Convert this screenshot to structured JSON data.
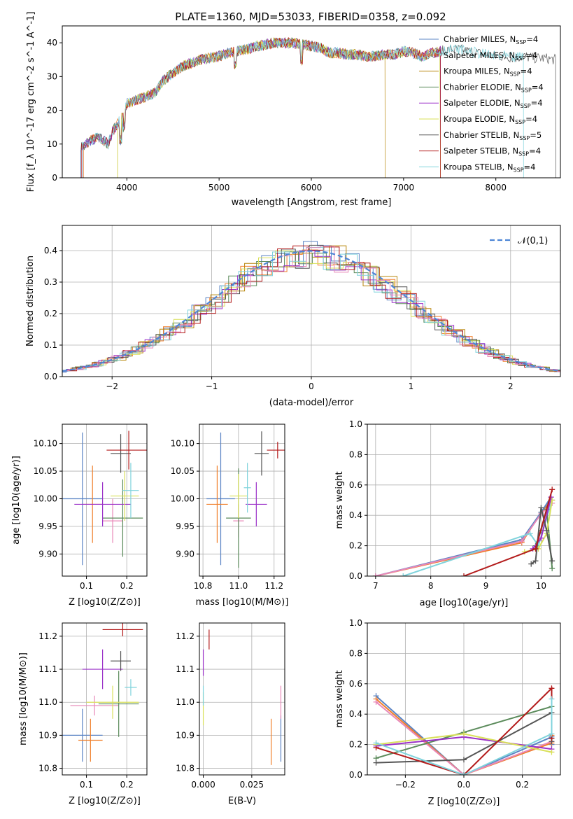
{
  "title": "PLATE=1360, MJD=53033, FIBERID=0358, z=0.092",
  "series_styles": [
    {
      "name": "Chabrier MILES",
      "nssp": "4",
      "color": "#5b84c4"
    },
    {
      "name": "Salpeter MILES",
      "nssp": "4",
      "color": "#f07f2a"
    },
    {
      "name": "Kroupa MILES",
      "nssp": "4",
      "color": "#b8860b"
    },
    {
      "name": "Chabrier ELODIE",
      "nssp": "4",
      "color": "#5a8a5a"
    },
    {
      "name": "Salpeter ELODIE",
      "nssp": "4",
      "color": "#9b30c8"
    },
    {
      "name": "Kroupa ELODIE",
      "nssp": "4",
      "color": "#d9e05a"
    },
    {
      "name": "Chabrier STELIB",
      "nssp": "5",
      "color": "#555555"
    },
    {
      "name": "Salpeter STELIB",
      "nssp": "4",
      "color": "#b31b1b"
    },
    {
      "name": "Kroupa STELIB",
      "nssp": "4",
      "color": "#7fd3dc"
    }
  ],
  "extra_colors": {
    "pink": "#e888b8"
  },
  "chart_data": [
    {
      "id": "spectrum",
      "type": "line",
      "xlabel": "wavelength [Angstrom, rest frame]",
      "ylabel": "Flux [f_λ 10^-17 erg cm^-2 s^-1 A^-1]",
      "xlim": [
        3300,
        8700
      ],
      "ylim": [
        0,
        45
      ],
      "xticks": [
        4000,
        5000,
        6000,
        7000,
        8000
      ],
      "yticks": [
        0,
        10,
        20,
        30,
        40
      ],
      "legend": "right",
      "envelope": {
        "x": [
          3500,
          3560,
          3600,
          3700,
          3800,
          3850,
          3900,
          3950,
          4000,
          4100,
          4200,
          4300,
          4400,
          4500,
          4600,
          4700,
          4800,
          4900,
          5000,
          5100,
          5200,
          5300,
          5400,
          5500,
          5600,
          5700,
          5800,
          5900,
          6000,
          6100,
          6200,
          6300,
          6400,
          6500,
          6600,
          6700,
          6800,
          6900,
          7000,
          7100,
          7200,
          7300,
          7400,
          7500,
          7600,
          7700,
          7800,
          7900,
          8000,
          8100,
          8200,
          8300,
          8400,
          8500,
          8650
        ],
        "y": [
          9,
          10,
          11,
          12,
          10,
          14,
          16,
          18,
          22,
          23,
          24,
          25,
          29,
          31,
          33,
          34,
          35,
          35.5,
          36,
          37,
          37.5,
          38,
          39,
          39.5,
          40,
          40,
          40,
          39.5,
          39,
          38.5,
          37,
          37,
          36.5,
          36.5,
          36,
          36,
          36.5,
          36.5,
          37.5,
          37,
          36,
          37,
          37.5,
          38,
          38,
          37.5,
          37,
          36.5,
          36,
          36,
          35.5,
          36,
          35.5,
          35.5,
          35
        ]
      }
    },
    {
      "id": "residuals",
      "type": "histogram",
      "xlabel": "(data-model)/error",
      "ylabel": "Normed distribution",
      "xlim": [
        -2.5,
        2.5
      ],
      "ylim": [
        0,
        0.48
      ],
      "xticks": [
        -2,
        -1,
        0,
        1,
        2
      ],
      "yticks": [
        0.0,
        0.1,
        0.2,
        0.3,
        0.4
      ],
      "reference_label": "𝒩(0,1)",
      "legend": "top-right"
    },
    {
      "id": "age_vs_Z",
      "type": "errorbar",
      "xlabel": "Z [log10(Z/Z⊙)]",
      "ylabel": "age [log10(age/yr)]",
      "xlim": [
        0.04,
        0.25
      ],
      "ylim": [
        9.86,
        10.135
      ],
      "xticks": [
        0.1,
        0.2
      ],
      "yticks": [
        9.9,
        9.95,
        10.0,
        10.05,
        10.1
      ],
      "points": [
        {
          "x": 0.09,
          "xerr": 0.05,
          "y": 10.0,
          "yerr": 0.12,
          "color": "#5b84c4"
        },
        {
          "x": 0.115,
          "xerr": 0.025,
          "y": 9.99,
          "yerr": 0.07,
          "color": "#f07f2a"
        },
        {
          "x": 0.165,
          "xerr": 0.025,
          "y": 9.96,
          "yerr": 0.04,
          "color": "#e888b8"
        },
        {
          "x": 0.19,
          "xerr": 0.05,
          "y": 9.965,
          "yerr": 0.07,
          "color": "#5a8a5a"
        },
        {
          "x": 0.14,
          "xerr": 0.07,
          "y": 9.99,
          "yerr": 0.04,
          "color": "#9b30c8"
        },
        {
          "x": 0.195,
          "xerr": 0.035,
          "y": 10.005,
          "yerr": 0.045,
          "color": "#d9e05a"
        },
        {
          "x": 0.185,
          "xerr": 0.025,
          "y": 10.082,
          "yerr": 0.035,
          "color": "#555555"
        },
        {
          "x": 0.205,
          "xerr": 0.055,
          "y": 10.088,
          "yerr": 0.035,
          "color": "#b31b1b"
        },
        {
          "x": 0.21,
          "xerr": 0.02,
          "y": 10.015,
          "yerr": 0.05,
          "color": "#7fd3dc"
        }
      ]
    },
    {
      "id": "age_vs_mass",
      "type": "errorbar",
      "xlabel": "mass [log10(M/M⊙)]",
      "ylabel": "",
      "xlim": [
        10.78,
        11.26
      ],
      "ylim": [
        9.86,
        10.135
      ],
      "xticks": [
        10.8,
        11.0,
        11.2
      ],
      "yticks": [
        9.9,
        9.95,
        10.0,
        10.05,
        10.1
      ],
      "points": [
        {
          "x": 10.9,
          "xerr": 0.08,
          "y": 10.0,
          "yerr": 0.12,
          "color": "#5b84c4"
        },
        {
          "x": 10.88,
          "xerr": 0.06,
          "y": 9.99,
          "yerr": 0.07,
          "color": "#f07f2a"
        },
        {
          "x": 11.0,
          "xerr": 0.03,
          "y": 9.96,
          "yerr": 0.03,
          "color": "#e888b8"
        },
        {
          "x": 11.0,
          "xerr": 0.07,
          "y": 9.965,
          "yerr": 0.09,
          "color": "#5a8a5a"
        },
        {
          "x": 11.1,
          "xerr": 0.06,
          "y": 9.99,
          "yerr": 0.04,
          "color": "#9b30c8"
        },
        {
          "x": 11.0,
          "xerr": 0.05,
          "y": 10.005,
          "yerr": 0.04,
          "color": "#d9e05a"
        },
        {
          "x": 11.13,
          "xerr": 0.04,
          "y": 10.082,
          "yerr": 0.04,
          "color": "#555555"
        },
        {
          "x": 11.22,
          "xerr": 0.06,
          "y": 10.088,
          "yerr": 0.015,
          "color": "#b31b1b"
        },
        {
          "x": 11.05,
          "xerr": 0.02,
          "y": 10.02,
          "yerr": 0.045,
          "color": "#7fd3dc"
        }
      ]
    },
    {
      "id": "massweight_vs_age",
      "type": "line",
      "xlabel": "age [log10(age/yr)]",
      "ylabel": "mass weight",
      "xlim": [
        6.85,
        10.35
      ],
      "ylim": [
        0,
        1
      ],
      "xticks": [
        7,
        8,
        9,
        10
      ],
      "yticks": [
        0.0,
        0.2,
        0.4,
        0.6,
        0.8,
        1.0
      ],
      "series": [
        {
          "color": "#f07f2a",
          "x": [
            7.0,
            9.65,
            10.0,
            10.2
          ],
          "y": [
            0.0,
            0.22,
            0.42,
            0.5
          ]
        },
        {
          "color": "#5b84c4",
          "x": [
            7.0,
            9.65,
            10.0,
            10.18
          ],
          "y": [
            0.0,
            0.24,
            0.42,
            0.52
          ]
        },
        {
          "color": "#e888b8",
          "x": [
            7.0,
            9.65,
            10.0,
            10.2
          ],
          "y": [
            0.0,
            0.23,
            0.41,
            0.48
          ]
        },
        {
          "color": "#7fd3dc",
          "x": [
            7.5,
            9.8,
            9.95,
            10.2
          ],
          "y": [
            0.0,
            0.28,
            0.2,
            0.5
          ]
        },
        {
          "color": "#5a8a5a",
          "x": [
            9.9,
            10.0,
            10.1,
            10.2
          ],
          "y": [
            0.2,
            0.3,
            0.44,
            0.05
          ]
        },
        {
          "color": "#d9e05a",
          "x": [
            9.7,
            9.95,
            10.1,
            10.2
          ],
          "y": [
            0.16,
            0.18,
            0.28,
            0.5
          ]
        },
        {
          "color": "#9b30c8",
          "x": [
            9.85,
            10.0,
            10.18
          ],
          "y": [
            0.18,
            0.25,
            0.52
          ]
        },
        {
          "color": "#555555",
          "x": [
            9.82,
            9.9,
            10.0,
            10.1,
            10.2
          ],
          "y": [
            0.08,
            0.1,
            0.45,
            0.3,
            0.1
          ]
        },
        {
          "color": "#b31b1b",
          "x": [
            8.6,
            9.9,
            10.2
          ],
          "y": [
            0.0,
            0.18,
            0.57
          ]
        }
      ]
    },
    {
      "id": "mass_vs_Z",
      "type": "errorbar",
      "xlabel": "Z [log10(Z/Z⊙)]",
      "ylabel": "mass [log10(M/M⊙)]",
      "xlim": [
        0.04,
        0.25
      ],
      "ylim": [
        10.78,
        11.24
      ],
      "xticks": [
        0.1,
        0.2
      ],
      "yticks": [
        10.8,
        10.9,
        11.0,
        11.1,
        11.2
      ],
      "points": [
        {
          "x": 0.09,
          "xerr": 0.05,
          "y": 10.9,
          "yerr": 0.08,
          "color": "#5b84c4"
        },
        {
          "x": 0.11,
          "xerr": 0.03,
          "y": 10.885,
          "yerr": 0.065,
          "color": "#f07f2a"
        },
        {
          "x": 0.12,
          "xerr": 0.06,
          "y": 10.99,
          "yerr": 0.03,
          "color": "#e888b8"
        },
        {
          "x": 0.18,
          "xerr": 0.05,
          "y": 10.995,
          "yerr": 0.1,
          "color": "#5a8a5a"
        },
        {
          "x": 0.14,
          "xerr": 0.05,
          "y": 11.1,
          "yerr": 0.06,
          "color": "#9b30c8"
        },
        {
          "x": 0.165,
          "xerr": 0.065,
          "y": 11.0,
          "yerr": 0.05,
          "color": "#d9e05a"
        },
        {
          "x": 0.185,
          "xerr": 0.025,
          "y": 11.125,
          "yerr": 0.03,
          "color": "#555555"
        },
        {
          "x": 0.19,
          "xerr": 0.05,
          "y": 11.22,
          "yerr": 0.02,
          "color": "#b31b1b"
        },
        {
          "x": 0.21,
          "xerr": 0.015,
          "y": 11.045,
          "yerr": 0.025,
          "color": "#7fd3dc"
        }
      ]
    },
    {
      "id": "mass_vs_EBV",
      "type": "errorbar",
      "xlabel": "E(B-V)",
      "ylabel": "",
      "xlim": [
        -0.002,
        0.042
      ],
      "ylim": [
        10.78,
        11.24
      ],
      "xticks": [
        0.0,
        0.025
      ],
      "yticks": [
        10.8,
        10.9,
        11.0,
        11.1,
        11.2
      ],
      "points": [
        {
          "x": 0.0,
          "xerr": 0,
          "y": 10.98,
          "yerr": 0.05,
          "color": "#d9e05a"
        },
        {
          "x": 0.0,
          "xerr": 0,
          "y": 11.12,
          "yerr": 0.04,
          "color": "#9b30c8"
        },
        {
          "x": 0.0,
          "xerr": 0,
          "y": 11.02,
          "yerr": 0.03,
          "color": "#7fd3dc"
        },
        {
          "x": 0.003,
          "xerr": 0,
          "y": 11.19,
          "yerr": 0.03,
          "color": "#b31b1b"
        },
        {
          "x": 0.035,
          "xerr": 0,
          "y": 10.88,
          "yerr": 0.07,
          "color": "#f07f2a"
        },
        {
          "x": 0.04,
          "xerr": 0,
          "y": 10.89,
          "yerr": 0.07,
          "color": "#5b84c4"
        },
        {
          "x": 0.04,
          "xerr": 0,
          "y": 11.0,
          "yerr": 0.05,
          "color": "#e888b8"
        }
      ]
    },
    {
      "id": "massweight_vs_Z",
      "type": "line",
      "xlabel": "Z [log10(Z/Z⊙)]",
      "ylabel": "mass weight",
      "xlim": [
        -0.33,
        0.33
      ],
      "ylim": [
        0,
        1
      ],
      "xticks": [
        -0.2,
        0.0,
        0.2
      ],
      "yticks": [
        0.0,
        0.2,
        0.4,
        0.6,
        0.8,
        1.0
      ],
      "series": [
        {
          "color": "#5b84c4",
          "x": [
            -0.3,
            0.0,
            0.3,
            0.3
          ],
          "y": [
            0.52,
            0.0,
            0.25,
            0.2
          ]
        },
        {
          "color": "#f07f2a",
          "x": [
            -0.3,
            0.0,
            0.3,
            0.3
          ],
          "y": [
            0.5,
            0.0,
            0.21,
            0.26
          ]
        },
        {
          "color": "#e888b8",
          "x": [
            -0.3,
            0.0,
            0.3
          ],
          "y": [
            0.48,
            0.0,
            0.22
          ]
        },
        {
          "color": "#5a8a5a",
          "x": [
            -0.3,
            0.0,
            0.3
          ],
          "y": [
            0.11,
            0.28,
            0.45
          ]
        },
        {
          "color": "#9b30c8",
          "x": [
            -0.3,
            0.0,
            0.3
          ],
          "y": [
            0.19,
            0.25,
            0.17
          ]
        },
        {
          "color": "#d9e05a",
          "x": [
            -0.3,
            0.0,
            0.3
          ],
          "y": [
            0.2,
            0.27,
            0.15
          ]
        },
        {
          "color": "#555555",
          "x": [
            -0.3,
            0.0,
            0.3,
            0.3
          ],
          "y": [
            0.08,
            0.1,
            0.41,
            0.22
          ]
        },
        {
          "color": "#b31b1b",
          "x": [
            -0.3,
            0.0,
            0.3,
            0.3
          ],
          "y": [
            0.18,
            0.0,
            0.57,
            0.24
          ]
        },
        {
          "color": "#7fd3dc",
          "x": [
            -0.3,
            0.0,
            0.3,
            0.3
          ],
          "y": [
            0.21,
            0.0,
            0.27,
            0.5
          ]
        }
      ]
    }
  ]
}
